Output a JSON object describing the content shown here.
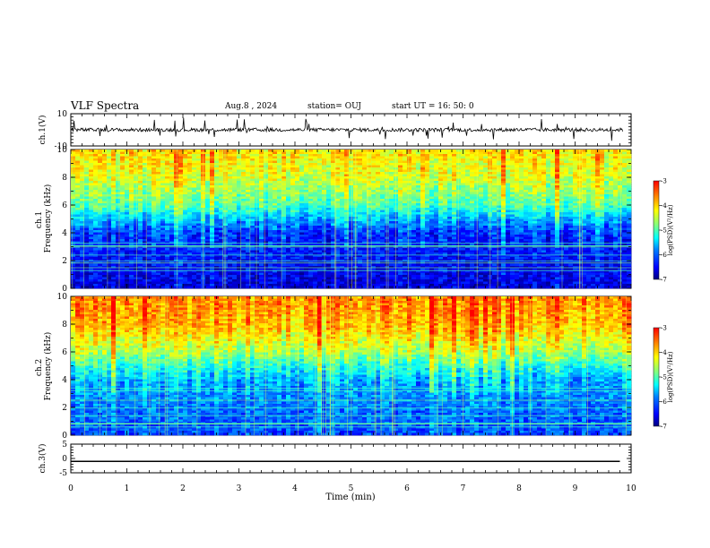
{
  "header": {
    "title": "VLF Spectra",
    "date": "Aug.8 , 2024",
    "station": "station= OUJ",
    "start": "start UT = 16: 50: 0"
  },
  "colors": {
    "colormap": [
      "#000080",
      "#0000ff",
      "#0080ff",
      "#00ffff",
      "#80ff80",
      "#ffff00",
      "#ff8000",
      "#ff0000"
    ]
  },
  "chart_data": [
    {
      "type": "line",
      "panel": "ch1-waveform",
      "ylabel": "ch.1(V)",
      "ylim": [
        -10,
        10
      ],
      "ytick_labels": [
        "10",
        "-10"
      ],
      "xlim": [
        0,
        10
      ],
      "description_level": "noise trace centred near 0 V with occasional spikes",
      "baseline": 0
    },
    {
      "type": "heatmap",
      "panel": "ch1-spectrogram",
      "ylabel": "ch.1 Frequency (kHz)",
      "ylim": [
        0,
        10
      ],
      "ytick_labels": [
        "0",
        "2",
        "4",
        "6",
        "8",
        "10"
      ],
      "xlim": [
        0,
        10
      ],
      "z_range": [
        -7,
        -3
      ],
      "colorbar_label": "log(PSD)(V²/Hz)",
      "colorbar_ticks": [
        "-3",
        "-4",
        "-5",
        "-6",
        "-7"
      ],
      "profile": [
        {
          "freq": 0,
          "level": -6.6
        },
        {
          "freq": 2,
          "level": -6.4
        },
        {
          "freq": 4,
          "level": -6.2
        },
        {
          "freq": 5,
          "level": -5.6
        },
        {
          "freq": 6,
          "level": -4.9
        },
        {
          "freq": 8,
          "level": -4.3
        },
        {
          "freq": 10,
          "level": -4.0
        }
      ]
    },
    {
      "type": "heatmap",
      "panel": "ch2-spectrogram",
      "ylabel": "ch.2 Frequency (kHz)",
      "ylim": [
        0,
        10
      ],
      "ytick_labels": [
        "0",
        "2",
        "4",
        "6",
        "8",
        "10"
      ],
      "xlim": [
        0,
        10
      ],
      "z_range": [
        -7,
        -3
      ],
      "colorbar_label": "log(PSD)(V²/Hz)",
      "colorbar_ticks": [
        "-3",
        "-4",
        "-5",
        "-6",
        "-7"
      ],
      "profile": [
        {
          "freq": 0,
          "level": -6.1
        },
        {
          "freq": 2,
          "level": -5.9
        },
        {
          "freq": 4,
          "level": -5.6
        },
        {
          "freq": 5,
          "level": -5.1
        },
        {
          "freq": 6,
          "level": -4.5
        },
        {
          "freq": 8,
          "level": -3.8
        },
        {
          "freq": 10,
          "level": -3.6
        }
      ]
    },
    {
      "type": "line",
      "panel": "ch3-waveform",
      "ylabel": "ch.3(V)",
      "ylim": [
        -5,
        5
      ],
      "ytick_labels": [
        "5",
        "0",
        "-5"
      ],
      "xlim": [
        0,
        10
      ],
      "x": [
        0,
        9.8
      ],
      "y": [
        -1,
        -1
      ]
    }
  ],
  "xaxis": {
    "label": "Time (min)",
    "ticks": [
      "0",
      "1",
      "2",
      "3",
      "4",
      "5",
      "6",
      "7",
      "8",
      "9",
      "10"
    ],
    "range": [
      0,
      10
    ]
  }
}
